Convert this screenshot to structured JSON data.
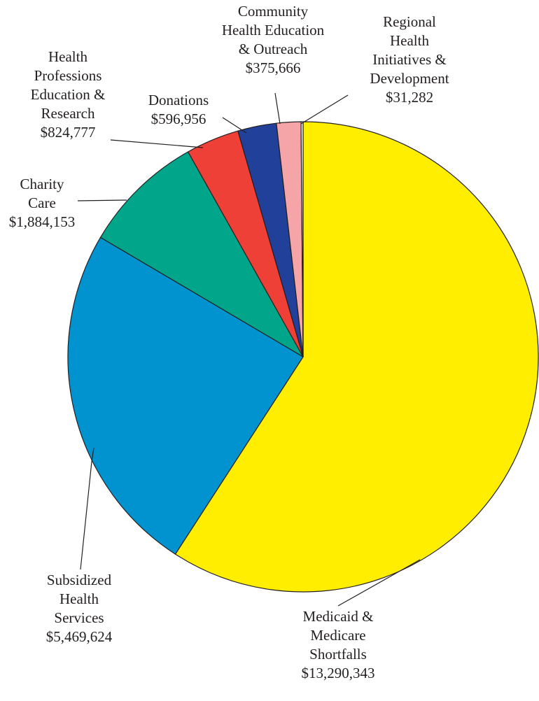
{
  "chart_data": {
    "type": "pie",
    "title": "",
    "slices": [
      {
        "lines": [
          "Medicaid &",
          "Medicare",
          "Shortfalls"
        ],
        "value_label": "$13,290,343",
        "value": 13290343,
        "color": "#ffee00"
      },
      {
        "lines": [
          "Subsidized",
          "Health",
          "Services"
        ],
        "value_label": "$5,469,624",
        "value": 5469624,
        "color": "#0093d0"
      },
      {
        "lines": [
          "Charity",
          "Care"
        ],
        "value_label": "$1,884,153",
        "value": 1884153,
        "color": "#00a58a"
      },
      {
        "lines": [
          "Health",
          "Professions",
          "Education &",
          "Research"
        ],
        "value_label": "$824,777",
        "value": 824777,
        "color": "#ee4036"
      },
      {
        "lines": [
          "Donations"
        ],
        "value_label": "$596,956",
        "value": 596956,
        "color": "#20409a"
      },
      {
        "lines": [
          "Community",
          "Health Education",
          "& Outreach"
        ],
        "value_label": "$375,666",
        "value": 375666,
        "color": "#f5a4a8"
      },
      {
        "lines": [
          "Regional",
          "Health",
          "Initiatives &",
          "Development"
        ],
        "value_label": "$31,282",
        "value": 31282,
        "color": "#ffffff"
      }
    ]
  }
}
